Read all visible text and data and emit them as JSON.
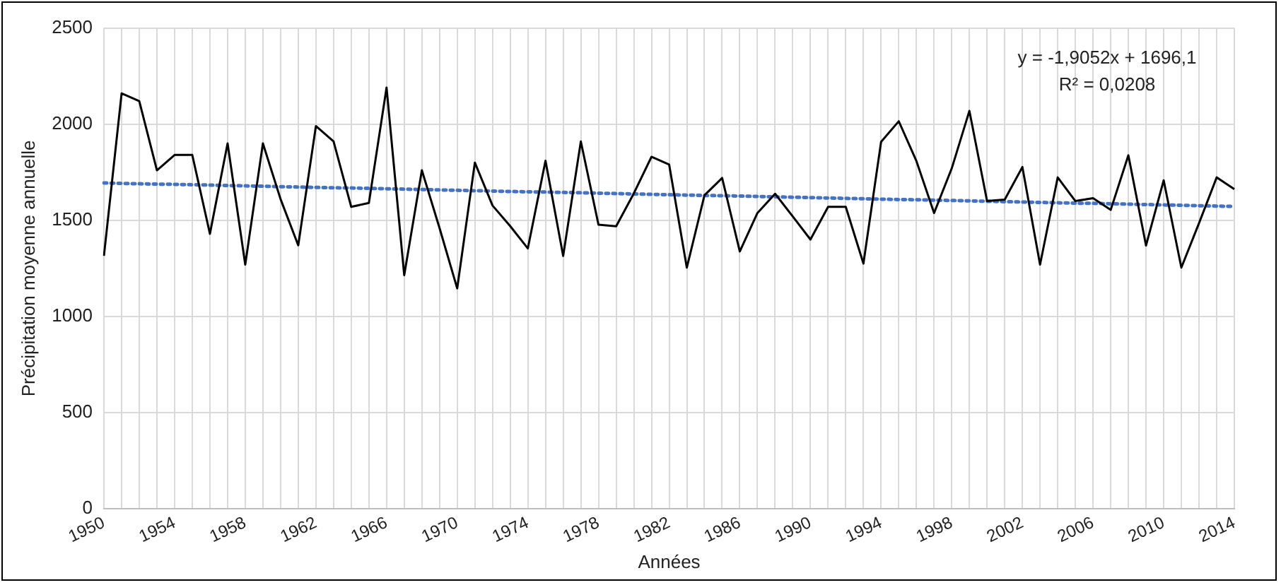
{
  "chart_data": {
    "type": "line",
    "xlabel": "Années",
    "ylabel": "Précipitation moyenne annuelle",
    "categories": [
      "1950",
      null,
      null,
      null,
      "1954",
      null,
      null,
      null,
      "1958",
      null,
      null,
      null,
      "1962",
      null,
      null,
      null,
      "1966",
      null,
      null,
      null,
      "1970",
      null,
      null,
      null,
      "1974",
      null,
      null,
      null,
      "1978",
      null,
      null,
      null,
      "1982",
      null,
      null,
      null,
      "1986",
      null,
      null,
      null,
      "1990",
      null,
      null,
      null,
      "1994",
      null,
      null,
      null,
      "1998",
      null,
      null,
      null,
      "2002",
      null,
      null,
      null,
      "2006",
      null,
      null,
      null,
      "2010",
      null,
      null,
      null,
      "2014"
    ],
    "series": [
      {
        "color": "#000000",
        "values": [
          1315,
          2160,
          2120,
          1760,
          1840,
          1840,
          1430,
          1900,
          1270,
          1900,
          1610,
          1370,
          1990,
          1910,
          1570,
          1590,
          2190,
          1215,
          1760,
          1460,
          1146,
          1800,
          1577,
          1470,
          1354,
          1810,
          1315,
          1910,
          1477,
          1469,
          1640,
          1830,
          1790,
          1254,
          1630,
          1720,
          1338,
          1538,
          1638,
          1520,
          1400,
          1570,
          1570,
          1275,
          1908,
          2015,
          1808,
          1538,
          1770,
          2069,
          1600,
          1608,
          1777,
          1270,
          1723,
          1600,
          1615,
          1554,
          1838,
          1369,
          1708,
          1254,
          1485,
          1723,
          1662
        ]
      },
      {
        "color": "#4472c4",
        "line_style": "dotted",
        "values": [
          1694,
          1692,
          1690,
          1688,
          1687,
          1685,
          1683,
          1681,
          1679,
          1677,
          1675,
          1673,
          1671,
          1669,
          1668,
          1666,
          1664,
          1662,
          1660,
          1658,
          1656,
          1654,
          1652,
          1650,
          1648,
          1647,
          1645,
          1643,
          1641,
          1639,
          1637,
          1635,
          1633,
          1631,
          1629,
          1628,
          1626,
          1624,
          1622,
          1620,
          1618,
          1616,
          1614,
          1612,
          1610,
          1608,
          1607,
          1605,
          1603,
          1601,
          1599,
          1597,
          1595,
          1593,
          1591,
          1589,
          1588,
          1586,
          1584,
          1582,
          1580,
          1578,
          1576,
          1574,
          1572
        ]
      }
    ],
    "annotations": [
      "y = -1,9052x + 1696,1",
      "R² = 0,0208"
    ],
    "ylim": [
      0,
      2500
    ],
    "yticks": [
      0,
      500,
      1000,
      1500,
      2000,
      2500
    ],
    "grid": true,
    "legend": false,
    "marker": "none",
    "line_style": "solid"
  }
}
